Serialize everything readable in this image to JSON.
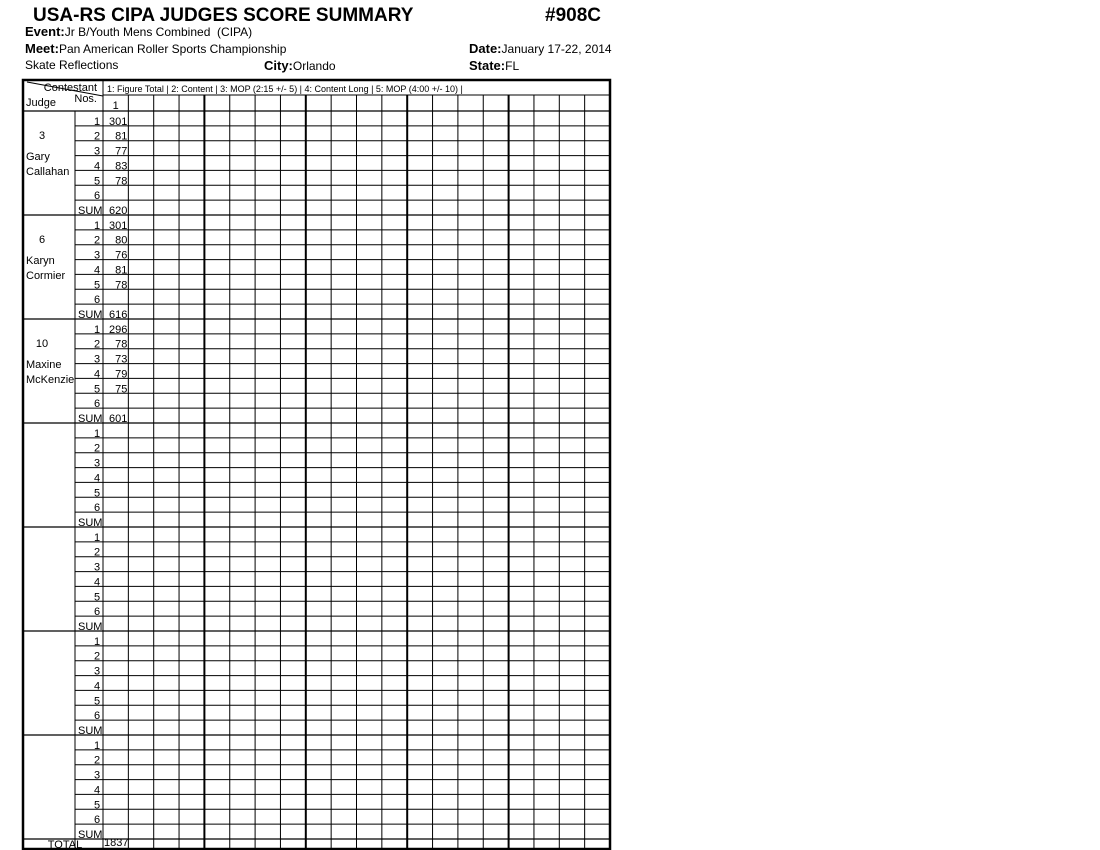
{
  "header": {
    "title": "USA-RS CIPA JUDGES SCORE SUMMARY",
    "form_number": "#908C",
    "event_label": "Event:",
    "event": "Jr B/Youth Mens Combined  (CIPA)",
    "meet_label": "Meet:",
    "meet": "Pan American Roller Sports Championship",
    "date_label": "Date:",
    "date": "January 17-22, 2014",
    "club": "Skate Reflections",
    "city_label": "City:",
    "city": "Orlando",
    "state_label": "State:",
    "state": "FL"
  },
  "table": {
    "corner_top": "Contestant",
    "corner_top2": "Nos.",
    "corner_bottom": "Judge",
    "legend": "1: Figure Total | 2: Content | 3: MOP (2:15 +/- 5) | 4: Content Long | 5: MOP (4:00 +/- 10) |",
    "contestants": [
      "1"
    ],
    "row_labels": [
      "1",
      "2",
      "3",
      "4",
      "5",
      "6",
      "SUM"
    ],
    "judges": [
      {
        "number": 3,
        "name": [
          "Gary",
          "Callahan"
        ],
        "scores": [
          301,
          81,
          77,
          83,
          78
        ],
        "sum": 620
      },
      {
        "number": 6,
        "name": [
          "Karyn",
          "Cormier"
        ],
        "scores": [
          301,
          80,
          76,
          81,
          78
        ],
        "sum": 616
      },
      {
        "number": 10,
        "name": [
          "Maxine",
          "McKenzie"
        ],
        "scores": [
          296,
          78,
          73,
          79,
          75
        ],
        "sum": 601
      }
    ],
    "total_label": "TOTAL",
    "totals": [
      1837
    ]
  }
}
